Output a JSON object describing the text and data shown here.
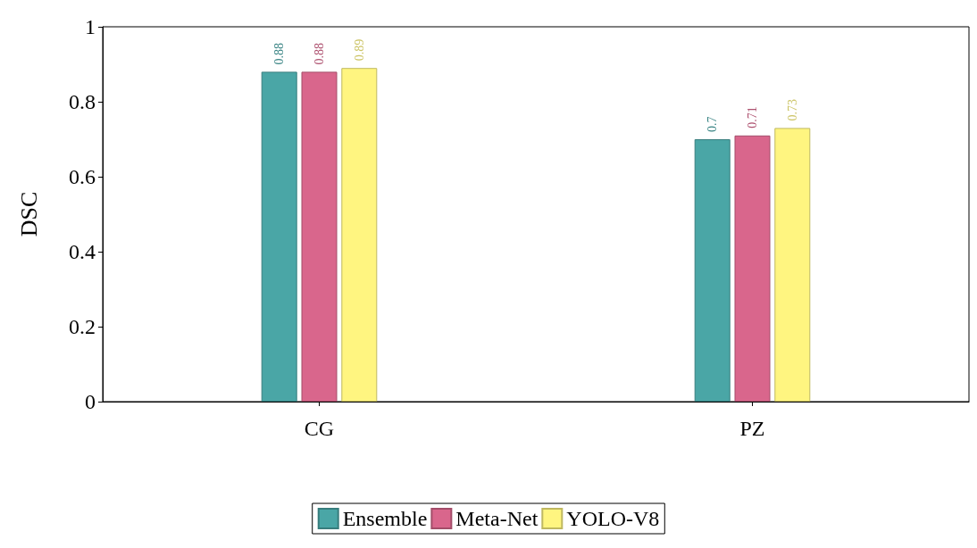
{
  "chart_data": {
    "type": "bar",
    "ylabel": "DSC",
    "categories": [
      "CG",
      "PZ"
    ],
    "series": [
      {
        "name": "Ensemble",
        "color": "#4aa6a6",
        "values": [
          0.88,
          0.7
        ]
      },
      {
        "name": "Meta-Net",
        "color": "#d9668c",
        "values": [
          0.88,
          0.71
        ]
      },
      {
        "name": "YOLO-V8",
        "color": "#fff580",
        "values": [
          0.89,
          0.73
        ]
      }
    ],
    "ylim": [
      0,
      1
    ],
    "yticks": [
      0,
      0.2,
      0.4,
      0.6,
      0.8,
      1
    ],
    "grid": false,
    "legend": "bottom",
    "data_labels": true
  }
}
